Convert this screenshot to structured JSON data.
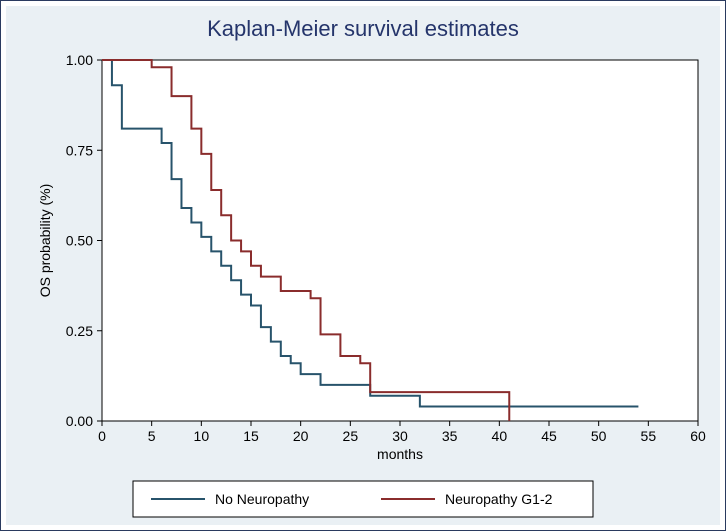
{
  "chart": {
    "type": "kaplan-meier-step",
    "title": "Kaplan-Meier survival estimates",
    "title_color": "#25356b",
    "title_fontsize": 22,
    "outer_bg": "#eaf0f4",
    "plot_bg": "#ffffff",
    "plot_border_color": "#000000",
    "axis_color": "#000000",
    "tick_fontsize": 14,
    "axis_label_fontsize": 14,
    "legend_fontsize": 14,
    "x": {
      "label": "months",
      "min": 0,
      "max": 60,
      "ticks": [
        0,
        5,
        10,
        15,
        20,
        25,
        30,
        35,
        40,
        45,
        50,
        55,
        60
      ]
    },
    "y": {
      "label": "OS probability (%)",
      "min": 0,
      "max": 1,
      "ticks": [
        0.0,
        0.25,
        0.5,
        0.75,
        1.0
      ],
      "tick_labels": [
        "0.00",
        "0.25",
        "0.50",
        "0.75",
        "1.00"
      ]
    },
    "series": [
      {
        "name": "No Neuropathy",
        "color": "#27536b",
        "line_width": 2,
        "points": [
          [
            0,
            1.0
          ],
          [
            1,
            0.93
          ],
          [
            2,
            0.81
          ],
          [
            6,
            0.77
          ],
          [
            7,
            0.67
          ],
          [
            8,
            0.59
          ],
          [
            9,
            0.55
          ],
          [
            10,
            0.51
          ],
          [
            11,
            0.47
          ],
          [
            12,
            0.43
          ],
          [
            13,
            0.39
          ],
          [
            14,
            0.35
          ],
          [
            15,
            0.32
          ],
          [
            16,
            0.26
          ],
          [
            17,
            0.22
          ],
          [
            18,
            0.18
          ],
          [
            19,
            0.16
          ],
          [
            20,
            0.13
          ],
          [
            22,
            0.1
          ],
          [
            27,
            0.07
          ],
          [
            32,
            0.04
          ],
          [
            54,
            0.04
          ]
        ]
      },
      {
        "name": "Neuropathy G1-2",
        "color": "#8a2c2c",
        "line_width": 2,
        "points": [
          [
            0,
            1.0
          ],
          [
            5,
            0.98
          ],
          [
            7,
            0.9
          ],
          [
            9,
            0.81
          ],
          [
            10,
            0.74
          ],
          [
            11,
            0.64
          ],
          [
            12,
            0.57
          ],
          [
            13,
            0.5
          ],
          [
            14,
            0.47
          ],
          [
            15,
            0.43
          ],
          [
            16,
            0.4
          ],
          [
            18,
            0.36
          ],
          [
            21,
            0.34
          ],
          [
            22,
            0.24
          ],
          [
            24,
            0.18
          ],
          [
            26,
            0.16
          ],
          [
            27,
            0.08
          ],
          [
            40,
            0.08
          ],
          [
            41,
            0.0
          ]
        ]
      }
    ],
    "legend": {
      "position": "bottom",
      "items": [
        {
          "label": "No Neuropathy",
          "color": "#27536b"
        },
        {
          "label": "Neuropathy G1-2",
          "color": "#8a2c2c"
        }
      ]
    }
  }
}
